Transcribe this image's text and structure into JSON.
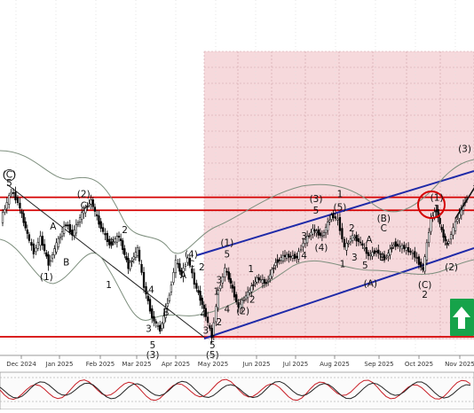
{
  "chart_data": {
    "type": "candlestick",
    "title": "",
    "x_axis": {
      "labels": [
        "Dec 2024",
        "Jan 2025",
        "Feb 2025",
        "Mar 2025",
        "Apr 2025",
        "May 2025",
        "Jun 2025",
        "Jul 2025",
        "Aug 2025",
        "Sep 2025",
        "Oct 2025",
        "Nov 2025"
      ]
    },
    "price_series_shape": [
      [
        "2024-11-20",
        0.72
      ],
      [
        "2024-11-28",
        0.9
      ],
      [
        "2024-12-03",
        0.83
      ],
      [
        "2024-12-10",
        0.63
      ],
      [
        "2024-12-15",
        0.52
      ],
      [
        "2024-12-20",
        0.61
      ],
      [
        "2024-12-26",
        0.45
      ],
      [
        "2025-01-01",
        0.57
      ],
      [
        "2025-01-08",
        0.7
      ],
      [
        "2025-01-13",
        0.63
      ],
      [
        "2025-01-20",
        0.76
      ],
      [
        "2025-01-27",
        0.84
      ],
      [
        "2025-02-02",
        0.7
      ],
      [
        "2025-02-10",
        0.57
      ],
      [
        "2025-02-17",
        0.62
      ],
      [
        "2025-02-24",
        0.43
      ],
      [
        "2025-03-03",
        0.54
      ],
      [
        "2025-03-08",
        0.31
      ],
      [
        "2025-03-14",
        0.12
      ],
      [
        "2025-03-20",
        0.04
      ],
      [
        "2025-03-27",
        0.26
      ],
      [
        "2025-04-01",
        0.47
      ],
      [
        "2025-04-05",
        0.38
      ],
      [
        "2025-04-10",
        0.49
      ],
      [
        "2025-04-15",
        0.33
      ],
      [
        "2025-04-22",
        0.17
      ],
      [
        "2025-04-28",
        0.0
      ],
      [
        "2025-05-03",
        0.28
      ],
      [
        "2025-05-08",
        0.42
      ],
      [
        "2025-05-12",
        0.33
      ],
      [
        "2025-05-18",
        0.18
      ],
      [
        "2025-05-25",
        0.27
      ],
      [
        "2025-06-01",
        0.36
      ],
      [
        "2025-06-08",
        0.33
      ],
      [
        "2025-06-15",
        0.46
      ],
      [
        "2025-06-22",
        0.5
      ],
      [
        "2025-07-01",
        0.49
      ],
      [
        "2025-07-06",
        0.58
      ],
      [
        "2025-07-13",
        0.66
      ],
      [
        "2025-07-20",
        0.62
      ],
      [
        "2025-07-27",
        0.75
      ],
      [
        "2025-08-01",
        0.72
      ],
      [
        "2025-08-06",
        0.55
      ],
      [
        "2025-08-12",
        0.62
      ],
      [
        "2025-08-18",
        0.58
      ],
      [
        "2025-08-24",
        0.5
      ],
      [
        "2025-08-30",
        0.53
      ],
      [
        "2025-09-05",
        0.48
      ],
      [
        "2025-09-12",
        0.57
      ],
      [
        "2025-09-20",
        0.55
      ],
      [
        "2025-09-28",
        0.5
      ],
      [
        "2025-10-04",
        0.41
      ],
      [
        "2025-10-10",
        0.73
      ],
      [
        "2025-10-14",
        0.78
      ],
      [
        "2025-10-18",
        0.65
      ],
      [
        "2025-10-22",
        0.56
      ],
      [
        "2025-10-27",
        0.67
      ],
      [
        "2025-11-02",
        0.79
      ],
      [
        "2025-11-06",
        0.86
      ]
    ],
    "annotations": [
      {
        "text": "(C)",
        "date": "2024-11-25",
        "level": 0.98
      },
      {
        "text": "5",
        "date": "2024-11-25",
        "level": 0.93
      },
      {
        "text": "(2)",
        "date": "2025-01-20",
        "level": 0.86
      },
      {
        "text": "C",
        "date": "2025-01-20",
        "level": 0.79
      },
      {
        "text": "A",
        "date": "2024-12-28",
        "level": 0.66
      },
      {
        "text": "B",
        "date": "2025-01-07",
        "level": 0.44
      },
      {
        "text": "(1)",
        "date": "2024-12-23",
        "level": 0.35
      },
      {
        "text": "2",
        "date": "2025-02-20",
        "level": 0.64
      },
      {
        "text": "3",
        "date": "2025-02-10",
        "level": 0.56
      },
      {
        "text": "1",
        "date": "2025-02-08",
        "level": 0.3
      },
      {
        "text": "4",
        "date": "2025-03-12",
        "level": 0.27
      },
      {
        "text": "A",
        "date": "2025-04-05",
        "level": 0.36
      },
      {
        "text": "B",
        "date": "2025-03-23",
        "level": 0.13
      },
      {
        "text": "(4)",
        "date": "2025-04-11",
        "level": 0.49
      },
      {
        "text": "C",
        "date": "2025-04-11",
        "level": 0.43
      },
      {
        "text": "2",
        "date": "2025-04-19",
        "level": 0.41
      },
      {
        "text": "3",
        "date": "2025-03-10",
        "level": 0.03
      },
      {
        "text": "5",
        "date": "2025-03-13",
        "level": -0.07
      },
      {
        "text": "(3)",
        "date": "2025-03-13",
        "level": -0.13
      },
      {
        "text": "4",
        "date": "2025-04-20",
        "level": 0.12
      },
      {
        "text": "3",
        "date": "2025-04-22",
        "level": 0.02
      },
      {
        "text": "5",
        "date": "2025-04-27",
        "level": -0.07
      },
      {
        "text": "(5)",
        "date": "2025-04-27",
        "level": -0.13
      },
      {
        "text": "(1)",
        "date": "2025-05-08",
        "level": 0.56
      },
      {
        "text": "5",
        "date": "2025-05-08",
        "level": 0.49
      },
      {
        "text": "3",
        "date": "2025-05-02",
        "level": 0.33
      },
      {
        "text": "1",
        "date": "2025-04-30",
        "level": 0.26
      },
      {
        "text": "4",
        "date": "2025-05-08",
        "level": 0.15
      },
      {
        "text": "2",
        "date": "2025-05-02",
        "level": 0.07
      },
      {
        "text": "(2)",
        "date": "2025-05-20",
        "level": 0.14
      },
      {
        "text": "2",
        "date": "2025-05-27",
        "level": 0.21
      },
      {
        "text": "1",
        "date": "2025-05-26",
        "level": 0.4
      },
      {
        "text": "3",
        "date": "2025-07-05",
        "level": 0.6
      },
      {
        "text": "5",
        "date": "2025-07-14",
        "level": 0.76
      },
      {
        "text": "(3)",
        "date": "2025-07-14",
        "level": 0.83
      },
      {
        "text": "4",
        "date": "2025-07-05",
        "level": 0.48
      },
      {
        "text": "(4)",
        "date": "2025-07-18",
        "level": 0.53
      },
      {
        "text": "1",
        "date": "2025-08-01",
        "level": 0.86
      },
      {
        "text": "(5)",
        "date": "2025-08-01",
        "level": 0.78
      },
      {
        "text": "2",
        "date": "2025-08-10",
        "level": 0.65
      },
      {
        "text": "A",
        "date": "2025-08-23",
        "level": 0.58
      },
      {
        "text": "1",
        "date": "2025-08-03",
        "level": 0.43
      },
      {
        "text": "3",
        "date": "2025-08-12",
        "level": 0.47
      },
      {
        "text": "5",
        "date": "2025-08-20",
        "level": 0.42
      },
      {
        "text": "B",
        "date": "2025-09-02",
        "level": 0.47
      },
      {
        "text": "(A)",
        "date": "2025-08-24",
        "level": 0.31
      },
      {
        "text": "(B)",
        "date": "2025-09-03",
        "level": 0.71
      },
      {
        "text": "C",
        "date": "2025-09-03",
        "level": 0.65
      },
      {
        "text": "(1)",
        "date": "2025-10-13",
        "level": 0.84
      },
      {
        "text": "1",
        "date": "2025-10-13",
        "level": 0.77
      },
      {
        "text": "(3)",
        "date": "2025-11-03",
        "level": 1.14
      },
      {
        "text": "(2)",
        "date": "2025-10-24",
        "level": 0.41
      },
      {
        "text": "(C)",
        "date": "2025-10-04",
        "level": 0.3
      },
      {
        "text": "2",
        "date": "2025-10-04",
        "level": 0.24
      }
    ],
    "circled_labels": [
      "(C)",
      "(1)",
      "(2)"
    ],
    "horizontal_levels": [
      0.86,
      0.78,
      0.0
    ],
    "legend": "none",
    "grid": true
  },
  "colors": {
    "resistance_line": "#d50000",
    "channel_line": "#1f2aa8",
    "forecast_zone": "#f2c7cc",
    "candles": "#000000",
    "bullish_arrow": "#16a34a",
    "envelope": "#7e8f7e",
    "oscillator_red": "#c81d25",
    "oscillator_black": "#222222"
  },
  "icons": {
    "signal": "up-arrow-icon"
  }
}
